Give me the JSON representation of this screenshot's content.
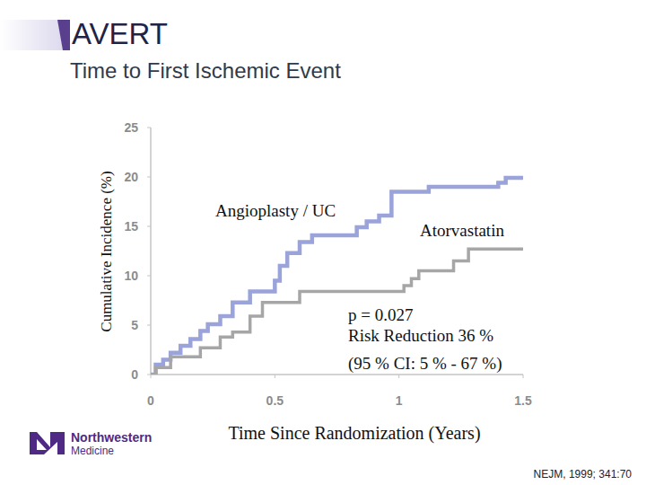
{
  "chart_data": {
    "type": "line",
    "line_style": "step",
    "title": "AVERT",
    "subtitle": "Time to First Ischemic Event",
    "y_label": "Cumulative Incidence (%)",
    "x_label": "Time Since Randomization (Years)",
    "annotations": [
      "p = 0.027",
      "Risk Reduction 36 %",
      "(95 % CI: 5 % - 67 %)"
    ],
    "source": "NEJM, 1999; 341:70",
    "logo": [
      "Northwestern",
      "Medicine"
    ],
    "x": [
      0,
      0.02,
      0.05,
      0.08,
      0.12,
      0.16,
      0.2,
      0.23,
      0.28,
      0.33,
      0.4,
      0.45,
      0.5,
      0.52,
      0.55,
      0.6,
      0.65,
      0.83,
      0.87,
      0.92,
      0.97,
      1.02,
      1.05,
      1.08,
      1.12,
      1.22,
      1.28,
      1.4,
      1.43,
      1.5
    ],
    "series": [
      {
        "name": "Angioplasty / UC",
        "color": "#9aa3da",
        "values": [
          0,
          1.0,
          1.5,
          2.2,
          2.9,
          3.6,
          4.4,
          5.1,
          5.9,
          7.3,
          8.4,
          8.4,
          9.5,
          11.0,
          12.3,
          13.4,
          14.1,
          14.9,
          15.5,
          16.1,
          18.5,
          18.5,
          18.5,
          18.5,
          19.0,
          19.0,
          19.0,
          19.4,
          19.9,
          19.9
        ]
      },
      {
        "name": "Atorvastatin",
        "color": "#a6a6a6",
        "values": [
          0,
          0.7,
          0.7,
          1.8,
          1.8,
          1.8,
          2.7,
          2.7,
          3.8,
          4.3,
          5.9,
          7.3,
          7.3,
          7.3,
          7.3,
          8.4,
          8.4,
          8.4,
          8.4,
          8.4,
          8.4,
          9.0,
          9.7,
          10.5,
          10.5,
          11.5,
          12.7,
          12.7,
          12.7,
          12.7
        ]
      }
    ],
    "xlim": [
      0,
      1.5
    ],
    "xticks": [
      0,
      0.5,
      1,
      1.5
    ],
    "ylim": [
      0,
      25
    ],
    "yticks": [
      0,
      5,
      10,
      15,
      20,
      25
    ],
    "grid": false
  }
}
